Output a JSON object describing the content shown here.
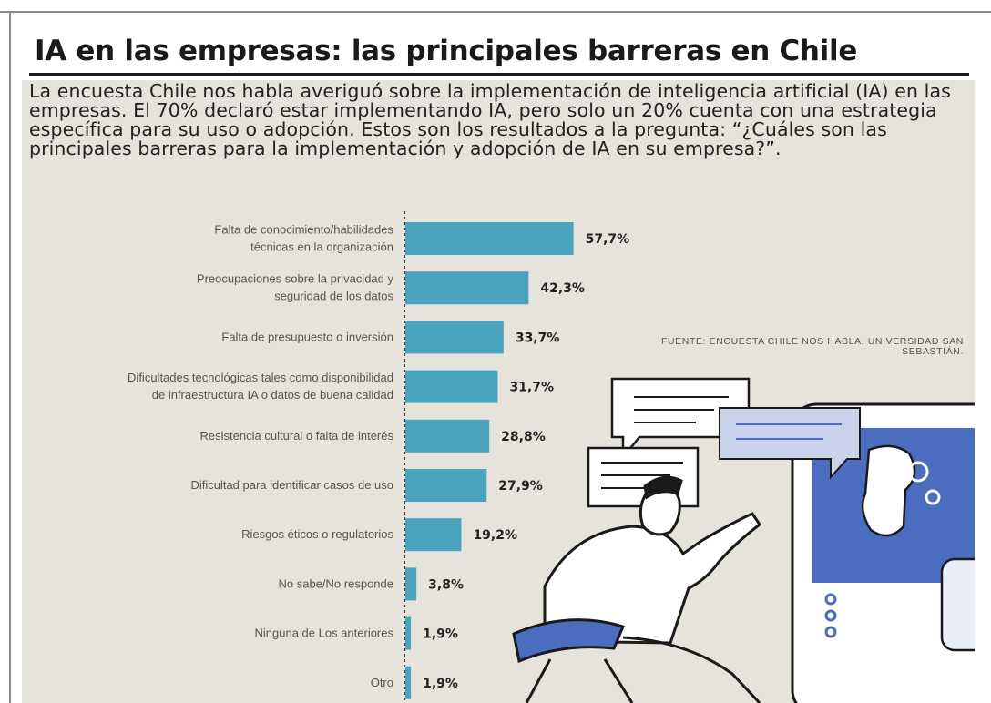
{
  "header": {
    "title": "IA en las empresas: las principales barreras en Chile",
    "intro": "La encuesta Chile nos habla averiguó sobre la implementación de inteligencia artificial (IA) en las empresas. El 70% declaró estar implementando IA, pero solo un 20% cuenta con una estrategia específica para su uso o adopción. Estos son los resultados a la pregunta: “¿Cuáles son las principales barreras para la implementación y adopción de IA en su empresa?”."
  },
  "source": "FUENTE: ENCUESTA CHILE NOS HABLA, UNIVERSIDAD SAN SEBASTIÁN.",
  "colors": {
    "bar": "#4aa3bd",
    "background": "#e6e3dc",
    "accent_blue": "#4a6dbf"
  },
  "illustration": {
    "name": "person-with-robot-illustration"
  },
  "chart_data": {
    "type": "bar",
    "orientation": "horizontal",
    "categories": [
      [
        "Falta de conocimiento/habilidades",
        "técnicas en la organización"
      ],
      [
        "Preocupaciones sobre la privacidad y",
        "seguridad de los datos"
      ],
      [
        "Falta de presupuesto o inversión"
      ],
      [
        "Dificultades tecnológicas tales como disponibilidad",
        "de infraestructura IA o datos de buena calidad"
      ],
      [
        "Resistencia cultural o falta de interés"
      ],
      [
        "Dificultad para identificar casos de uso"
      ],
      [
        "Riesgos éticos o regulatorios"
      ],
      [
        "No sabe/No responde"
      ],
      [
        "Ninguna de Los anteriores"
      ],
      [
        "Otro"
      ]
    ],
    "values": [
      57.7,
      42.3,
      33.7,
      31.7,
      28.8,
      27.9,
      19.2,
      3.8,
      1.9,
      1.9
    ],
    "value_labels": [
      "57,7%",
      "42,3%",
      "33,7%",
      "31,7%",
      "28,8%",
      "27,9%",
      "19,2%",
      "3,8%",
      "1,9%",
      "1,9%"
    ],
    "unit": "%",
    "xlim": [
      0,
      100
    ],
    "grid": false,
    "legend": "none"
  }
}
